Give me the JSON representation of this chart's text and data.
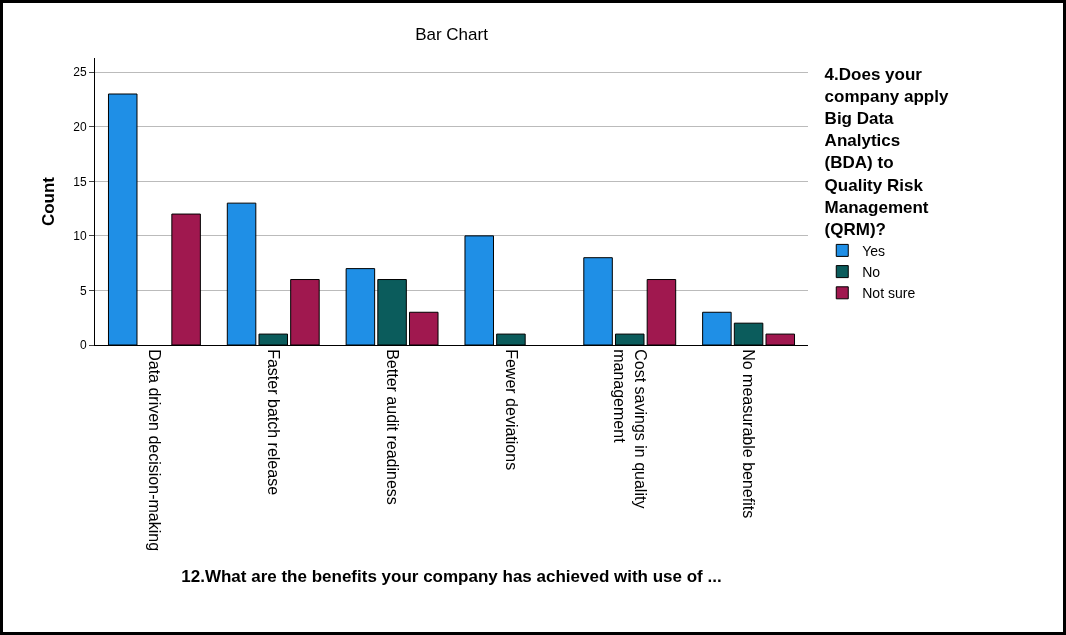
{
  "chart_data": {
    "type": "bar",
    "title": "Bar Chart",
    "xlabel": "12.What are the benefits your company has achieved with use of ...",
    "ylabel": "Count",
    "legend_title": "4.Does your company apply Big Data Analytics (BDA) to Quality Risk Management (QRM)?",
    "categories": [
      "Data driven decision-making",
      "Faster batch release",
      "Better audit readiness",
      "Fewer deviations",
      "Cost savings in quality management",
      "No measurable benefits"
    ],
    "series": [
      {
        "name": "Yes",
        "color": "#1f8fe6",
        "values": [
          23,
          13,
          7,
          10,
          8,
          3
        ]
      },
      {
        "name": "No",
        "color": "#0b5c5c",
        "values": [
          null,
          1,
          6,
          1,
          1,
          2
        ]
      },
      {
        "name": "Not sure",
        "color": "#a0184f",
        "values": [
          12,
          6,
          3,
          null,
          6,
          1
        ]
      }
    ],
    "ylim": [
      0,
      26.3
    ],
    "yticks": [
      0,
      5,
      10,
      15,
      20,
      25
    ],
    "grid": "y",
    "legend": "right"
  }
}
